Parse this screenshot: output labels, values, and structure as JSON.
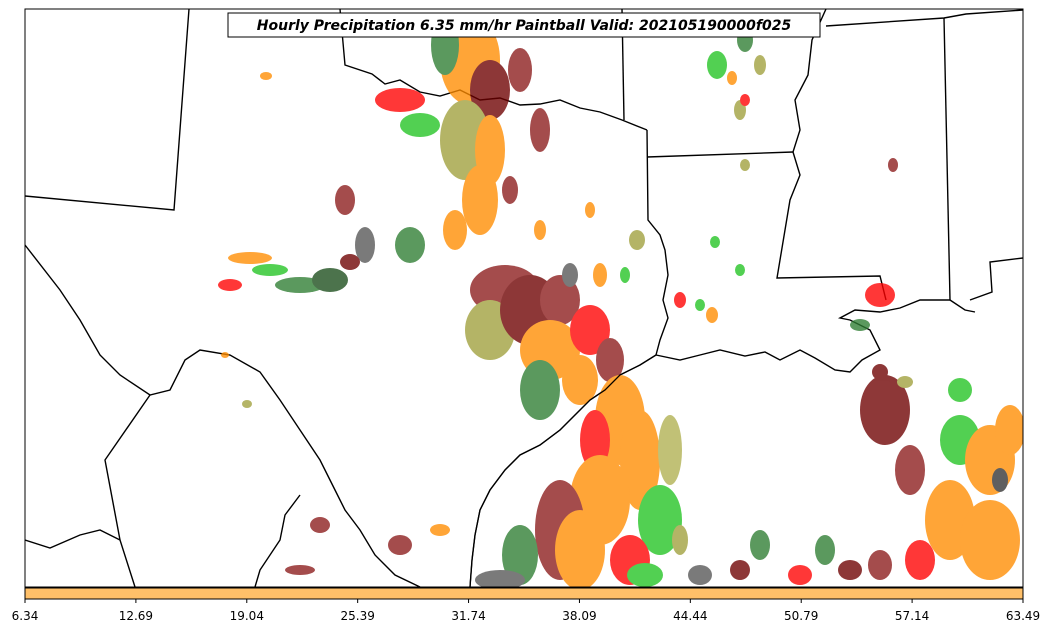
{
  "map": {
    "title": "Hourly Precipitation 6.35 mm/hr Paintball Valid: 202105190000f025",
    "colorbar": {
      "ticks": [
        "6.34",
        "12.69",
        "19.04",
        "25.39",
        "31.74",
        "38.09",
        "44.44",
        "50.79",
        "57.14",
        "63.49"
      ],
      "fill_color": "#ffc069"
    },
    "member_colors": [
      "#8b1a1a",
      "#ff0000",
      "#ff8c00",
      "#a0a03c",
      "#2e7d32",
      "#22c322",
      "#555555",
      "#6e0000",
      "#b0b050"
    ]
  }
}
